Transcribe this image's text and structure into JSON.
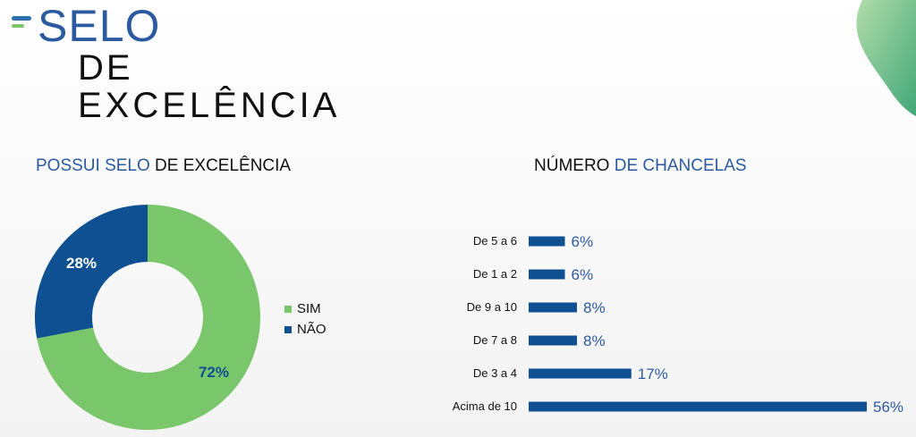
{
  "header": {
    "title_line1": "SELO",
    "title_line2": "DE",
    "title_line3": "EXCELÊNCIA"
  },
  "left_subtitle": {
    "part1": "POSSUI SELO",
    "part2": " DE EXCELÊNCIA"
  },
  "right_subtitle": {
    "part1": "NÚMERO",
    "part2": " DE CHANCELAS"
  },
  "colors": {
    "green": "#7ac66a",
    "blue": "#0f5092",
    "title_blue": "#2c5aa0"
  },
  "chart_data": [
    {
      "type": "pie",
      "donut": true,
      "categories": [
        "SIM",
        "NÃO"
      ],
      "values": [
        72,
        28
      ],
      "labels": [
        "72%",
        "28%"
      ],
      "colors": [
        "#7ac66a",
        "#0f5092"
      ],
      "legend": [
        "SIM",
        "NÃO"
      ],
      "legend_position": "right"
    },
    {
      "type": "bar",
      "orientation": "horizontal",
      "categories": [
        "De 5 a 6",
        "De 1 a 2",
        "De 9 a 10",
        "De 7 a 8",
        "De 3 a 4",
        "Acima de 10"
      ],
      "values": [
        6,
        6,
        8,
        8,
        17,
        56
      ],
      "labels": [
        "6%",
        "6%",
        "8%",
        "8%",
        "17%",
        "56%"
      ],
      "color": "#0f5092",
      "xlim": [
        0,
        56
      ]
    }
  ]
}
